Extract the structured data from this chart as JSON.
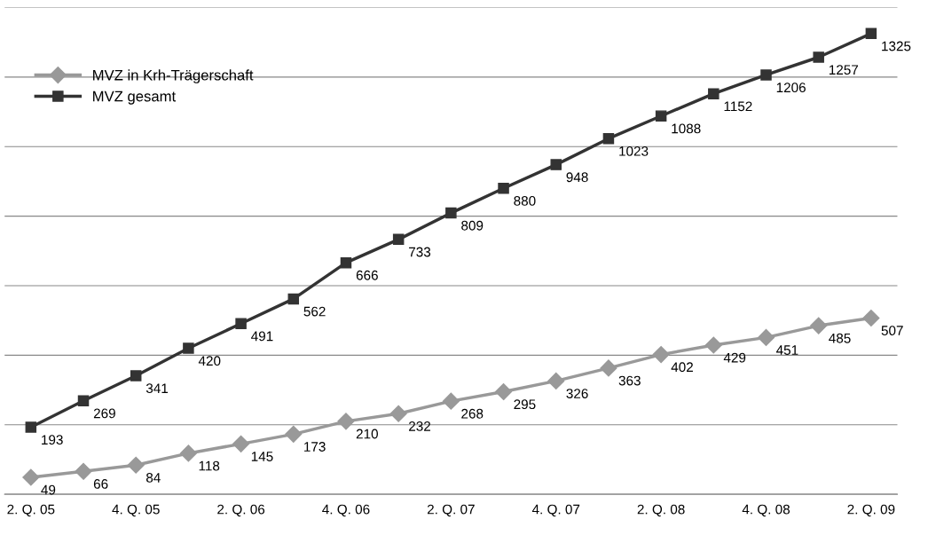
{
  "chart_data": {
    "type": "line",
    "categories": [
      "2. Q. 05",
      null,
      "4. Q. 05",
      null,
      "2. Q. 06",
      null,
      "4. Q. 06",
      null,
      "2. Q. 07",
      null,
      "4. Q. 07",
      null,
      "2. Q. 08",
      null,
      "4. Q. 08",
      null,
      "2. Q. 09"
    ],
    "series": [
      {
        "name": "MVZ in Krh-Trägerschaft",
        "color": "#999999",
        "marker": "diamond",
        "values": [
          49,
          66,
          84,
          118,
          145,
          173,
          210,
          232,
          268,
          295,
          326,
          363,
          402,
          429,
          451,
          485,
          507
        ]
      },
      {
        "name": "MVZ gesamt",
        "color": "#333333",
        "marker": "square",
        "values": [
          193,
          269,
          341,
          420,
          491,
          562,
          666,
          733,
          809,
          880,
          948,
          1023,
          1088,
          1152,
          1206,
          1257,
          1325
        ]
      }
    ],
    "ylim": [
      0,
      1400
    ],
    "yticks": [
      {
        "value": 0,
        "label": null
      },
      {
        "value": 200,
        "label": null
      },
      {
        "value": 400,
        "label": null
      },
      {
        "value": 600,
        "label": null
      },
      {
        "value": 800,
        "label": null
      },
      {
        "value": 1000,
        "label": null
      },
      {
        "value": 1200,
        "label": null
      },
      {
        "value": 1400,
        "label": null
      }
    ],
    "tick_labels": "x",
    "grid": "y",
    "data_labels": true,
    "legend": "top left",
    "line_style": "solid"
  }
}
